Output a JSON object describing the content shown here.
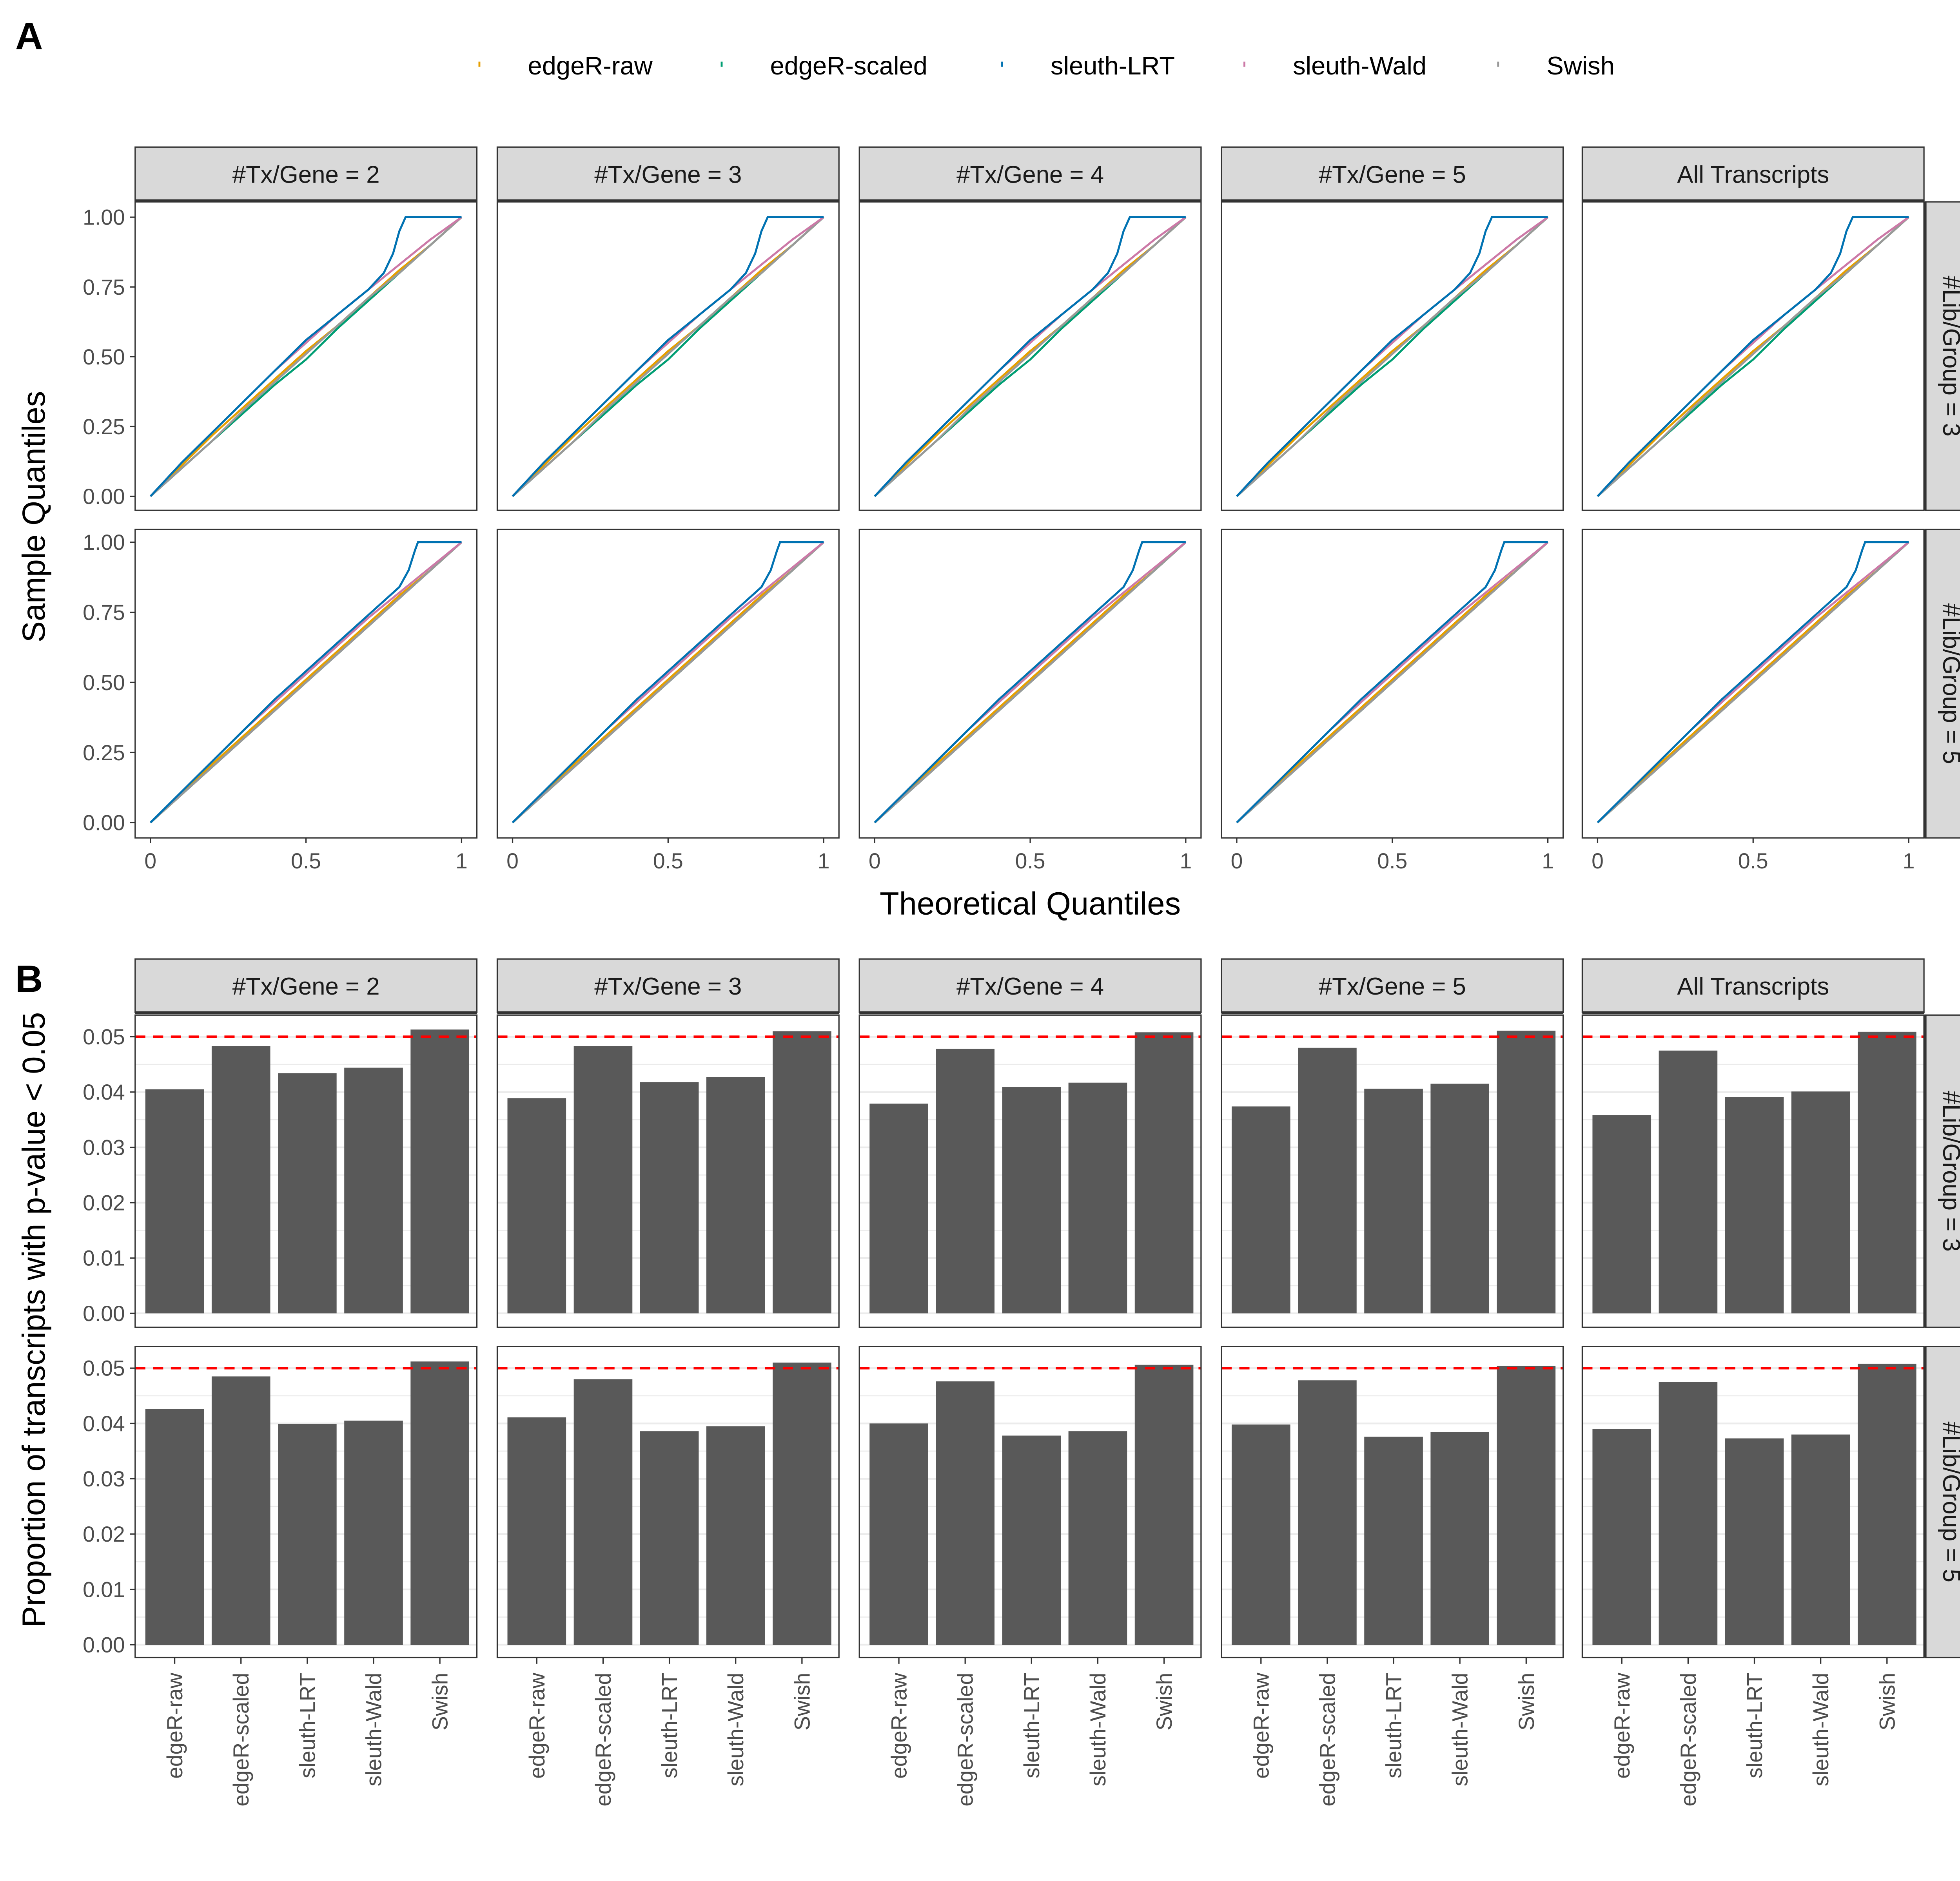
{
  "chart_data": [
    {
      "panel": "A",
      "type": "line",
      "xlabel": "Theoretical Quantiles",
      "ylabel": "Sample Quantiles",
      "xlim": [
        0,
        1
      ],
      "ylim": [
        0,
        1
      ],
      "xticks": [
        "0",
        "0.5",
        "1"
      ],
      "yticks": [
        "0.00",
        "0.25",
        "0.50",
        "0.75",
        "1.00"
      ],
      "legend_position": "top",
      "col_facets": [
        "#Tx/Gene = 2",
        "#Tx/Gene = 3",
        "#Tx/Gene = 4",
        "#Tx/Gene = 5",
        "All Transcripts"
      ],
      "row_facets": [
        "#Lib/Group = 3",
        "#Lib/Group = 5"
      ],
      "series_colors": {
        "edgeR-raw": "#E69F00",
        "edgeR-scaled": "#009E73",
        "sleuth-LRT": "#0072B2",
        "sleuth-Wald": "#CC79A7",
        "Swish": "#999999"
      },
      "rows": [
        {
          "series": [
            {
              "name": "edgeR-raw",
              "x": [
                0,
                0.1,
                0.2,
                0.3,
                0.4,
                0.5,
                0.6,
                0.7,
                0.8,
                0.9,
                1
              ],
              "y": [
                0,
                0.11,
                0.22,
                0.32,
                0.42,
                0.52,
                0.61,
                0.71,
                0.81,
                0.9,
                1
              ]
            },
            {
              "name": "edgeR-scaled",
              "x": [
                0,
                0.1,
                0.2,
                0.3,
                0.4,
                0.5,
                0.6,
                0.7,
                0.8,
                0.9,
                1
              ],
              "y": [
                0,
                0.1,
                0.2,
                0.3,
                0.4,
                0.49,
                0.6,
                0.7,
                0.8,
                0.9,
                1
              ]
            },
            {
              "name": "Swish",
              "x": [
                0,
                0.1,
                0.2,
                0.3,
                0.4,
                0.5,
                0.6,
                0.7,
                0.8,
                0.9,
                1
              ],
              "y": [
                0,
                0.1,
                0.2,
                0.31,
                0.41,
                0.51,
                0.61,
                0.71,
                0.8,
                0.9,
                1
              ]
            },
            {
              "name": "sleuth-Wald",
              "x": [
                0,
                0.1,
                0.2,
                0.3,
                0.4,
                0.5,
                0.6,
                0.7,
                0.8,
                0.9,
                1
              ],
              "y": [
                0,
                0.12,
                0.23,
                0.34,
                0.45,
                0.55,
                0.65,
                0.74,
                0.83,
                0.92,
                1
              ]
            },
            {
              "name": "sleuth-LRT",
              "x": [
                0,
                0.1,
                0.2,
                0.3,
                0.4,
                0.5,
                0.6,
                0.7,
                0.75,
                0.78,
                0.8,
                0.82,
                0.9,
                1
              ],
              "y": [
                0,
                0.12,
                0.23,
                0.34,
                0.45,
                0.56,
                0.65,
                0.74,
                0.8,
                0.87,
                0.95,
                1,
                1,
                1
              ]
            }
          ]
        },
        {
          "series": [
            {
              "name": "edgeR-raw",
              "x": [
                0,
                0.1,
                0.2,
                0.3,
                0.4,
                0.5,
                0.6,
                0.7,
                0.8,
                0.9,
                1
              ],
              "y": [
                0,
                0.1,
                0.21,
                0.31,
                0.41,
                0.51,
                0.61,
                0.71,
                0.81,
                0.9,
                1
              ]
            },
            {
              "name": "edgeR-scaled",
              "x": [
                0,
                0.1,
                0.2,
                0.3,
                0.4,
                0.5,
                0.6,
                0.7,
                0.8,
                0.9,
                1
              ],
              "y": [
                0,
                0.1,
                0.2,
                0.3,
                0.4,
                0.5,
                0.6,
                0.7,
                0.8,
                0.9,
                1
              ]
            },
            {
              "name": "Swish",
              "x": [
                0,
                0.1,
                0.2,
                0.3,
                0.4,
                0.5,
                0.6,
                0.7,
                0.8,
                0.9,
                1
              ],
              "y": [
                0,
                0.1,
                0.2,
                0.3,
                0.4,
                0.5,
                0.6,
                0.7,
                0.8,
                0.9,
                1
              ]
            },
            {
              "name": "sleuth-Wald",
              "x": [
                0,
                0.1,
                0.2,
                0.3,
                0.4,
                0.5,
                0.6,
                0.7,
                0.8,
                0.9,
                1
              ],
              "y": [
                0,
                0.11,
                0.22,
                0.33,
                0.43,
                0.53,
                0.63,
                0.73,
                0.82,
                0.91,
                1
              ]
            },
            {
              "name": "sleuth-LRT",
              "x": [
                0,
                0.1,
                0.2,
                0.3,
                0.4,
                0.5,
                0.6,
                0.7,
                0.8,
                0.83,
                0.85,
                0.86,
                0.9,
                1
              ],
              "y": [
                0,
                0.11,
                0.22,
                0.33,
                0.44,
                0.54,
                0.64,
                0.74,
                0.84,
                0.9,
                0.97,
                1,
                1,
                1
              ]
            }
          ]
        }
      ]
    },
    {
      "panel": "B",
      "type": "bar",
      "ylabel": "Proportion of transcripts with p-value < 0.05",
      "ylim": [
        0,
        0.053
      ],
      "yticks": [
        "0.00",
        "0.01",
        "0.02",
        "0.03",
        "0.04",
        "0.05"
      ],
      "reference_line": {
        "y": 0.05,
        "color": "#FF0000",
        "style": "dashed"
      },
      "bar_color": "#595959",
      "categories": [
        "edgeR-raw",
        "edgeR-scaled",
        "sleuth-LRT",
        "sleuth-Wald",
        "Swish"
      ],
      "col_facets": [
        "#Tx/Gene = 2",
        "#Tx/Gene = 3",
        "#Tx/Gene = 4",
        "#Tx/Gene = 5",
        "All Transcripts"
      ],
      "row_facets": [
        "#Lib/Group = 3",
        "#Lib/Group = 5"
      ],
      "values": [
        [
          [
            0.0405,
            0.0483,
            0.0434,
            0.0444,
            0.0513
          ],
          [
            0.0389,
            0.0483,
            0.0418,
            0.0427,
            0.051
          ],
          [
            0.0379,
            0.0478,
            0.0409,
            0.0417,
            0.0508
          ],
          [
            0.0374,
            0.048,
            0.0406,
            0.0415,
            0.0511
          ],
          [
            0.0358,
            0.0475,
            0.0391,
            0.0401,
            0.0509
          ]
        ],
        [
          [
            0.0426,
            0.0485,
            0.0399,
            0.0405,
            0.0512
          ],
          [
            0.0411,
            0.048,
            0.0386,
            0.0395,
            0.051
          ],
          [
            0.04,
            0.0476,
            0.0378,
            0.0386,
            0.0506
          ],
          [
            0.0398,
            0.0478,
            0.0376,
            0.0384,
            0.0504
          ],
          [
            0.039,
            0.0475,
            0.0373,
            0.038,
            0.0508
          ]
        ]
      ]
    }
  ],
  "panel_letters": [
    "A",
    "B"
  ],
  "legend": [
    "edgeR-raw",
    "edgeR-scaled",
    "sleuth-LRT",
    "sleuth-Wald",
    "Swish"
  ]
}
